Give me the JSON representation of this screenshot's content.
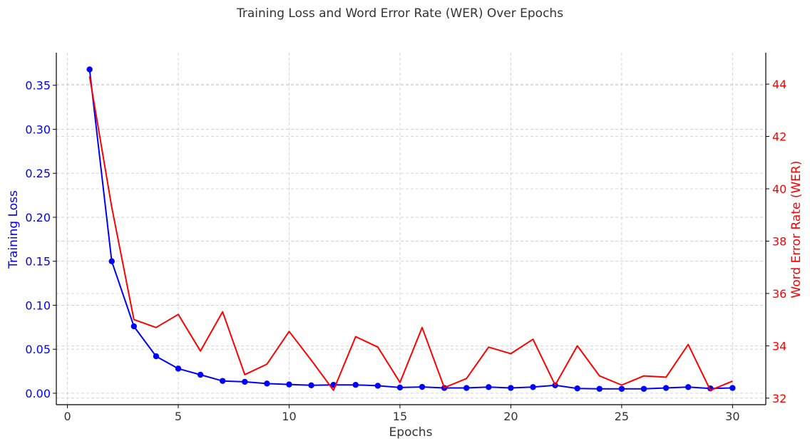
{
  "chart_data": {
    "type": "line",
    "title": "Training Loss and Word Error Rate (WER) Over Epochs",
    "xlabel": "Epochs",
    "ylabel_left": "Training Loss",
    "ylabel_right": "Word Error Rate (WER)",
    "x": [
      1,
      2,
      3,
      4,
      5,
      6,
      7,
      8,
      9,
      10,
      11,
      12,
      13,
      14,
      15,
      16,
      17,
      18,
      19,
      20,
      21,
      22,
      23,
      24,
      25,
      26,
      27,
      28,
      29,
      30
    ],
    "xlim": [
      -0.5,
      31.5
    ],
    "ylim_left": [
      -0.013,
      0.387
    ],
    "ylim_right": [
      31.75,
      45.2
    ],
    "x_ticks": [
      "0",
      "5",
      "10",
      "15",
      "20",
      "25",
      "30"
    ],
    "y_left_ticks": [
      "0.00",
      "0.05",
      "0.10",
      "0.15",
      "0.20",
      "0.25",
      "0.30",
      "0.35"
    ],
    "y_right_ticks": [
      "32",
      "34",
      "36",
      "38",
      "40",
      "42",
      "44"
    ],
    "grid": true,
    "colors": {
      "left": "#0000ff",
      "right": "#ff0000",
      "grid": "#cccccc",
      "text": "#333333"
    },
    "series": [
      {
        "axis": "left",
        "color": "#0000ff",
        "marker": "circle",
        "values": [
          0.368,
          0.15,
          0.076,
          0.042,
          0.028,
          0.021,
          0.014,
          0.013,
          0.011,
          0.01,
          0.009,
          0.0095,
          0.0095,
          0.0085,
          0.0065,
          0.0072,
          0.006,
          0.006,
          0.007,
          0.006,
          0.007,
          0.009,
          0.0055,
          0.005,
          0.005,
          0.005,
          0.006,
          0.007,
          0.0055,
          0.006
        ]
      },
      {
        "axis": "right",
        "color": "#ff0000",
        "marker": "none",
        "values": [
          44.3,
          39.3,
          35.0,
          34.7,
          35.2,
          33.8,
          35.3,
          32.9,
          33.3,
          34.55,
          33.45,
          32.3,
          34.35,
          33.95,
          32.6,
          34.7,
          32.4,
          32.75,
          33.95,
          33.7,
          34.25,
          32.5,
          34.0,
          32.85,
          32.5,
          32.85,
          32.8,
          34.05,
          32.3,
          32.65
        ]
      }
    ]
  }
}
